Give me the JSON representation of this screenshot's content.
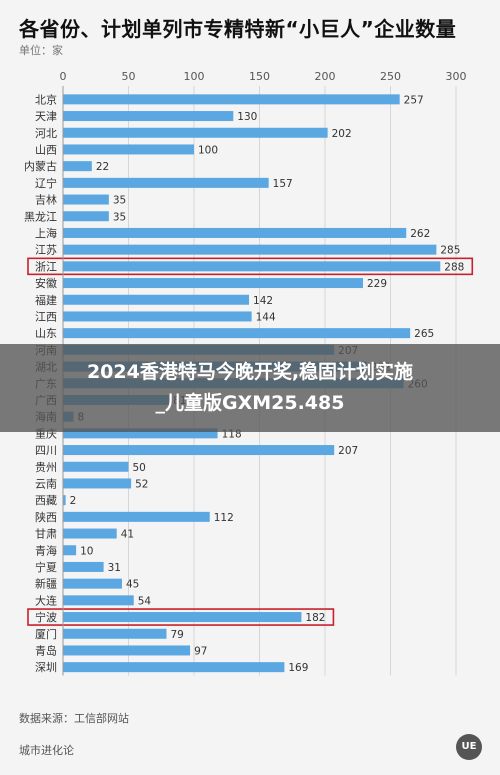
{
  "header": {
    "title": "各省份、计划单列市专精特新“小巨人”企业数量",
    "unit": "单位：家"
  },
  "banner": {
    "text": "2024香港特马今晚开奖,稳固计划实施\n_儿童版GXM25.485"
  },
  "footer": {
    "source": "数据来源：工信部网站",
    "brand": "城市进化论",
    "logo": "UE"
  },
  "colors": {
    "bar": "#5aa7e2",
    "highlight_border": "#c8202a",
    "grid": "#d6d6d6"
  },
  "chart_data": {
    "type": "bar",
    "orientation": "horizontal",
    "title": "各省份、计划单列市专精特新“小巨人”企业数量",
    "xlim": [
      0,
      300
    ],
    "x_ticks": [
      "0",
      "50",
      "100",
      "150",
      "200",
      "250",
      "300"
    ],
    "tick_values": [
      0,
      50,
      100,
      150,
      200,
      250,
      300
    ],
    "grid": true,
    "highlighted": [
      "浙江",
      "宁波"
    ],
    "categories": [
      "北京",
      "天津",
      "河北",
      "山西",
      "内蒙古",
      "辽宁",
      "吉林",
      "黑龙江",
      "上海",
      "江苏",
      "浙江",
      "安徽",
      "福建",
      "江西",
      "山东",
      "河南",
      "湖北",
      "广东",
      "广西",
      "海南",
      "重庆",
      "四川",
      "贵州",
      "云南",
      "西藏",
      "陕西",
      "甘肃",
      "青海",
      "宁夏",
      "新疆",
      "大连",
      "宁波",
      "厦门",
      "青岛",
      "深圳"
    ],
    "values": [
      257,
      130,
      202,
      100,
      22,
      157,
      35,
      35,
      262,
      285,
      288,
      229,
      142,
      144,
      265,
      207,
      232,
      260,
      81,
      8,
      118,
      207,
      50,
      52,
      2,
      112,
      41,
      10,
      31,
      45,
      54,
      182,
      79,
      97,
      169
    ],
    "value_labels": [
      "257",
      "130",
      "202",
      "100",
      "22",
      "157",
      "35",
      "35",
      "262",
      "285",
      "288",
      "229",
      "142",
      "144",
      "265",
      "207",
      "232",
      "260",
      "81",
      "8",
      "118",
      "207",
      "50",
      "52",
      "2",
      "112",
      "41",
      "10",
      "31",
      "45",
      "54",
      "182",
      "79",
      "97",
      "169"
    ]
  }
}
